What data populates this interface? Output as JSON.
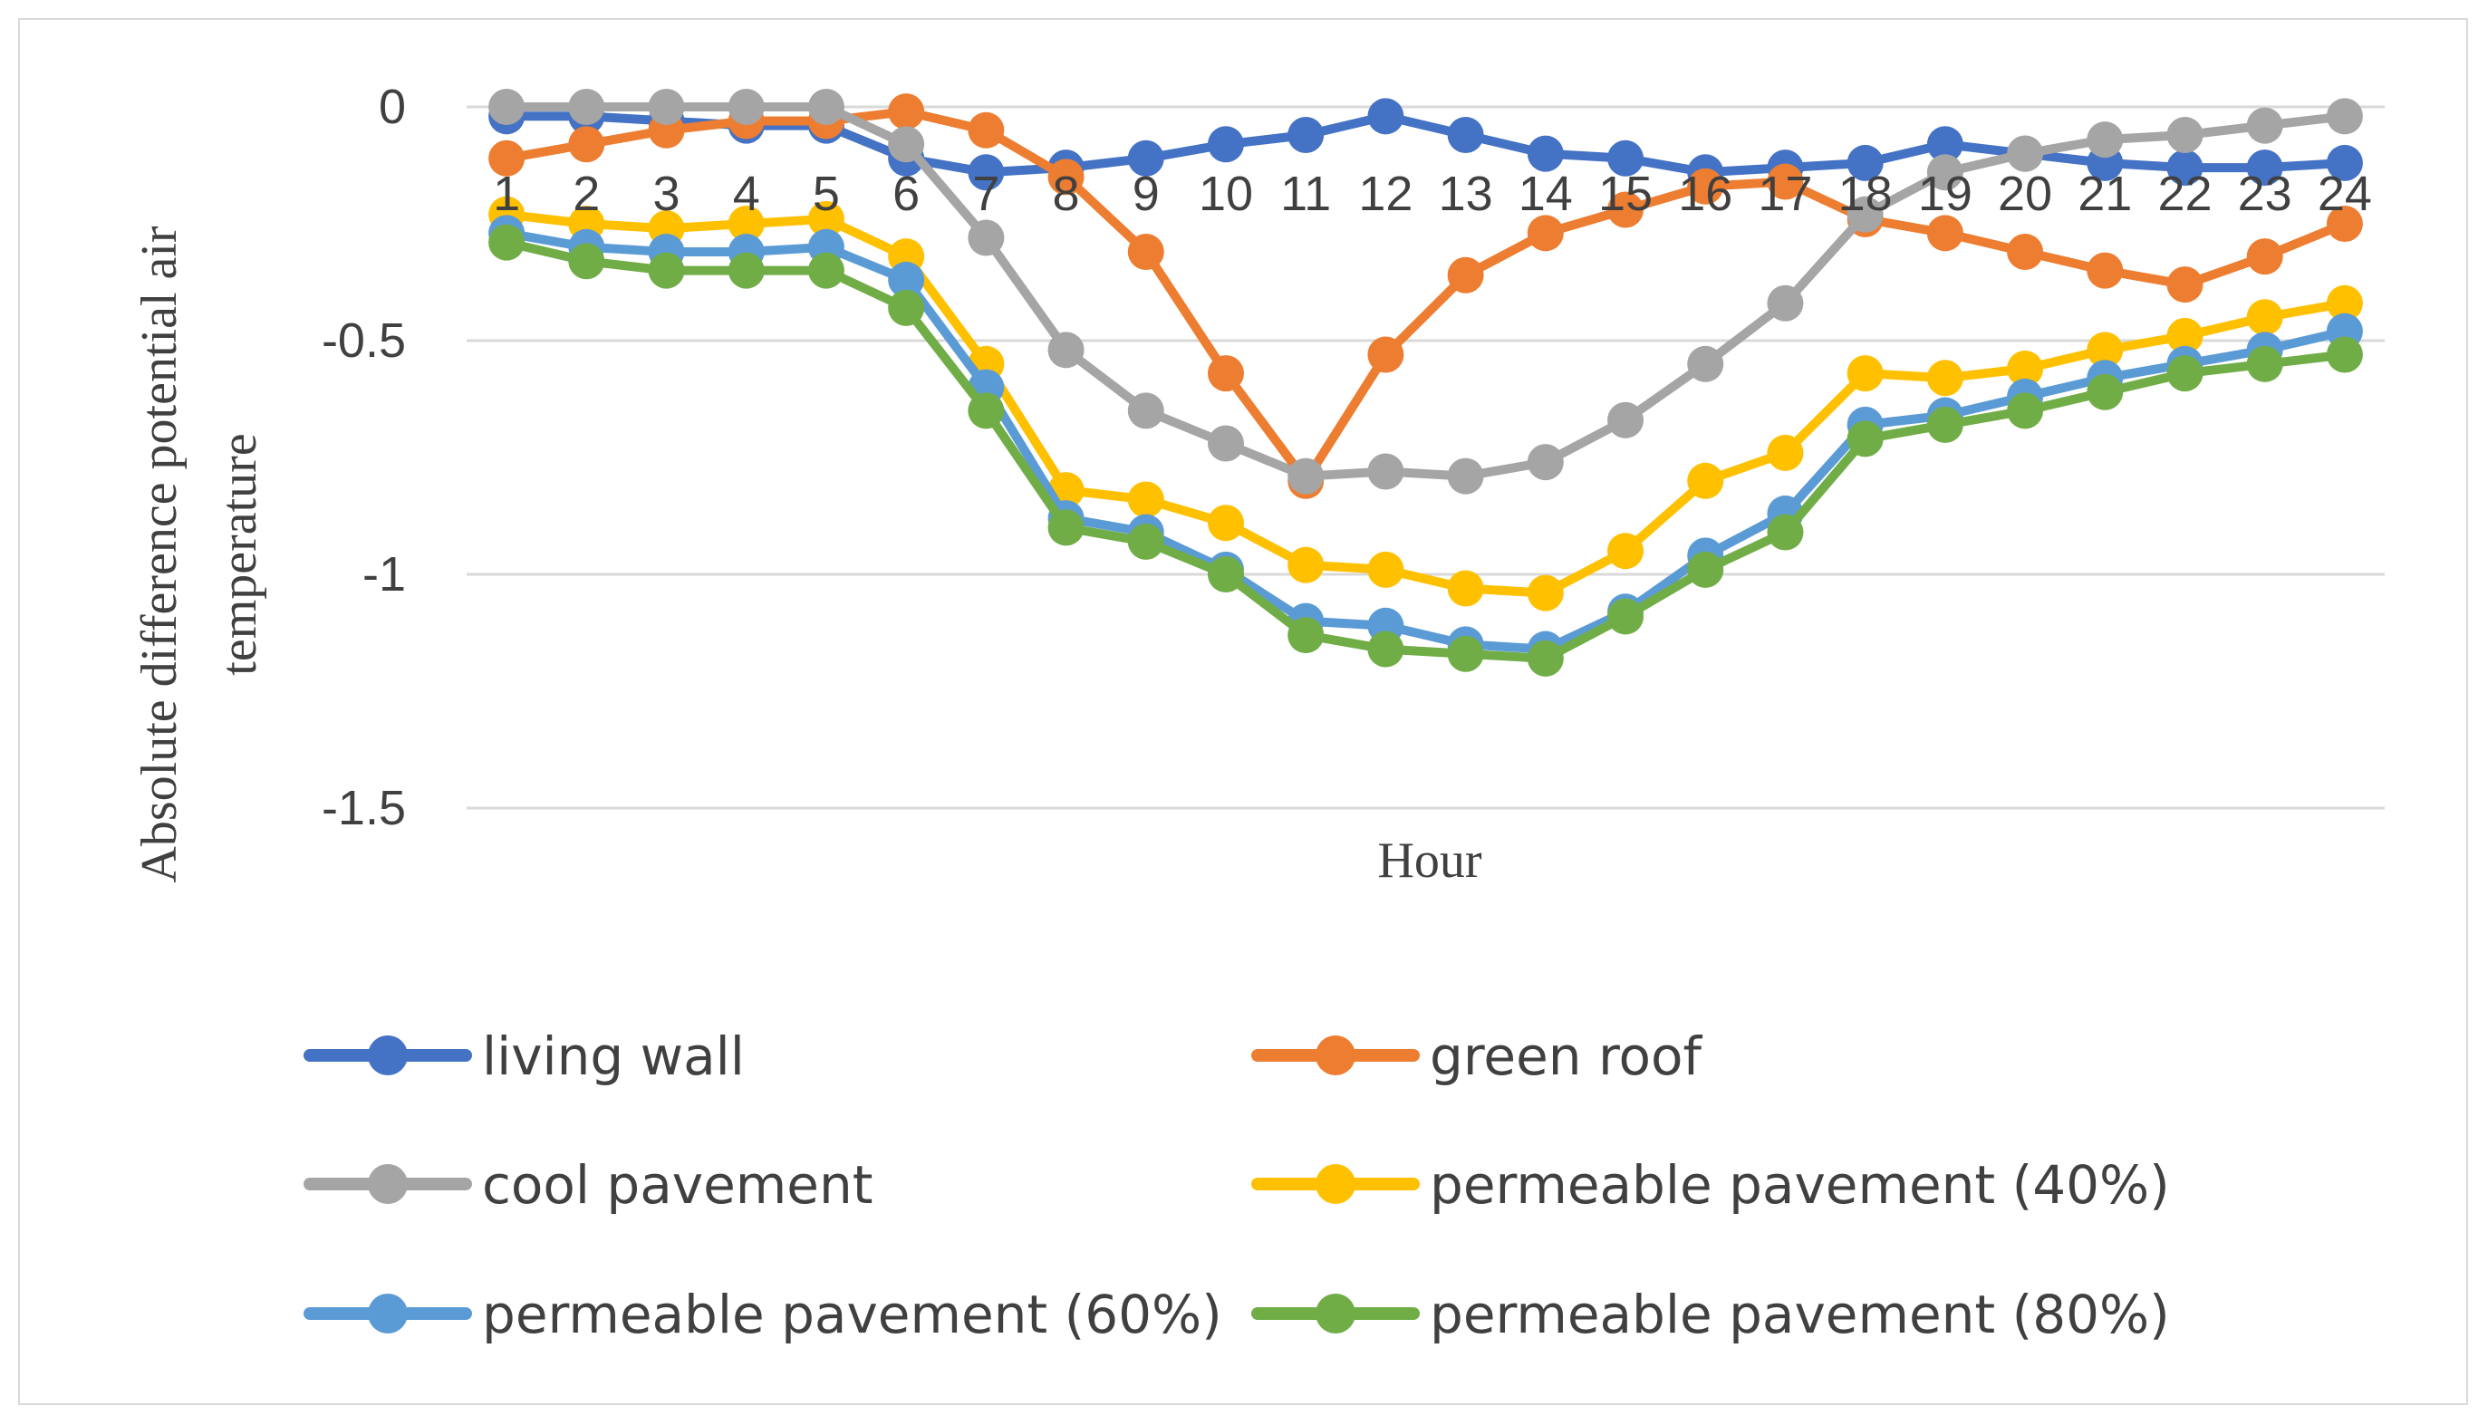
{
  "chart_data": {
    "type": "line",
    "title": "",
    "xlabel": "Hour",
    "ylabel_lines": [
      "Absolute difference potential air",
      "temperature"
    ],
    "ylim": [
      -1.5,
      0
    ],
    "yticks": [
      0,
      -0.5,
      -1,
      -1.5
    ],
    "ytick_labels": [
      "0",
      "-0.5",
      "-1",
      "-1.5"
    ],
    "categories": [
      "1",
      "2",
      "3",
      "4",
      "5",
      "6",
      "7",
      "8",
      "9",
      "10",
      "11",
      "12",
      "13",
      "14",
      "15",
      "16",
      "17",
      "18",
      "19",
      "20",
      "21",
      "22",
      "23",
      "24"
    ],
    "grid": true,
    "legend": "bottom",
    "series": [
      {
        "name": "living wall",
        "color": "#4472C4",
        "values": [
          -0.02,
          -0.02,
          -0.03,
          -0.04,
          -0.04,
          -0.11,
          -0.14,
          -0.13,
          -0.11,
          -0.08,
          -0.06,
          -0.02,
          -0.06,
          -0.1,
          -0.11,
          -0.14,
          -0.13,
          -0.12,
          -0.08,
          -0.1,
          -0.12,
          -0.13,
          -0.13,
          -0.12
        ]
      },
      {
        "name": "green roof",
        "color": "#ED7D31",
        "values": [
          -0.11,
          -0.08,
          -0.05,
          -0.03,
          -0.03,
          -0.01,
          -0.05,
          -0.15,
          -0.31,
          -0.57,
          -0.8,
          -0.53,
          -0.36,
          -0.27,
          -0.22,
          -0.17,
          -0.16,
          -0.24,
          -0.27,
          -0.31,
          -0.35,
          -0.38,
          -0.32,
          -0.25
        ]
      },
      {
        "name": "cool pavement",
        "color": "#A5A5A5",
        "values": [
          0,
          0,
          0,
          0,
          0,
          -0.08,
          -0.28,
          -0.52,
          -0.65,
          -0.72,
          -0.79,
          -0.78,
          -0.79,
          -0.76,
          -0.67,
          -0.55,
          -0.42,
          -0.23,
          -0.14,
          -0.1,
          -0.07,
          -0.06,
          -0.04,
          -0.02
        ]
      },
      {
        "name": "permeable pavement (40%)",
        "color": "#FFC000",
        "values": [
          -0.23,
          -0.25,
          -0.26,
          -0.25,
          -0.24,
          -0.32,
          -0.55,
          -0.82,
          -0.84,
          -0.89,
          -0.98,
          -0.99,
          -1.03,
          -1.04,
          -0.95,
          -0.8,
          -0.74,
          -0.57,
          -0.58,
          -0.56,
          -0.52,
          -0.49,
          -0.45,
          -0.42
        ]
      },
      {
        "name": "permeable pavement (60%)",
        "color": "#5B9BD5",
        "values": [
          -0.27,
          -0.3,
          -0.31,
          -0.31,
          -0.3,
          -0.37,
          -0.6,
          -0.88,
          -0.91,
          -0.99,
          -1.1,
          -1.11,
          -1.15,
          -1.16,
          -1.08,
          -0.96,
          -0.87,
          -0.68,
          -0.66,
          -0.62,
          -0.58,
          -0.55,
          -0.52,
          -0.48
        ]
      },
      {
        "name": "permeable pavement (80%)",
        "color": "#70AD47",
        "values": [
          -0.29,
          -0.33,
          -0.35,
          -0.35,
          -0.35,
          -0.43,
          -0.65,
          -0.9,
          -0.93,
          -1.0,
          -1.13,
          -1.16,
          -1.17,
          -1.18,
          -1.09,
          -0.99,
          -0.91,
          -0.71,
          -0.68,
          -0.65,
          -0.61,
          -0.57,
          -0.55,
          -0.53
        ]
      }
    ]
  }
}
